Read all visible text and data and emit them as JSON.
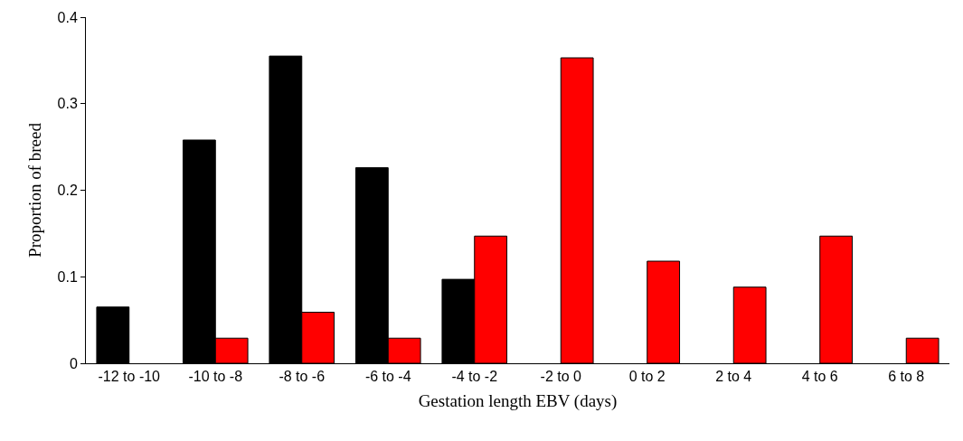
{
  "chart_data": {
    "type": "bar",
    "xlabel": "Gestation length EBV (days)",
    "ylabel": "Proportion of breed",
    "categories": [
      "-12 to -10",
      "-10 to -8",
      "-8 to -6",
      "-6 to -4",
      "-4 to -2",
      "-2 to 0",
      "0 to 2",
      "2 to 4",
      "4 to 6",
      "6 to 8"
    ],
    "series": [
      {
        "color": "#000000",
        "values": [
          0.065,
          0.258,
          0.355,
          0.226,
          0.097,
          0,
          0,
          0,
          0,
          0
        ]
      },
      {
        "color": "#ff0000",
        "values": [
          0,
          0.029,
          0.059,
          0.029,
          0.147,
          0.353,
          0.118,
          0.088,
          0.147,
          0.029
        ]
      }
    ],
    "ylim": [
      0,
      0.4
    ],
    "yticks": [
      0,
      0.1,
      0.2,
      0.3,
      0.4
    ],
    "grid": false
  }
}
